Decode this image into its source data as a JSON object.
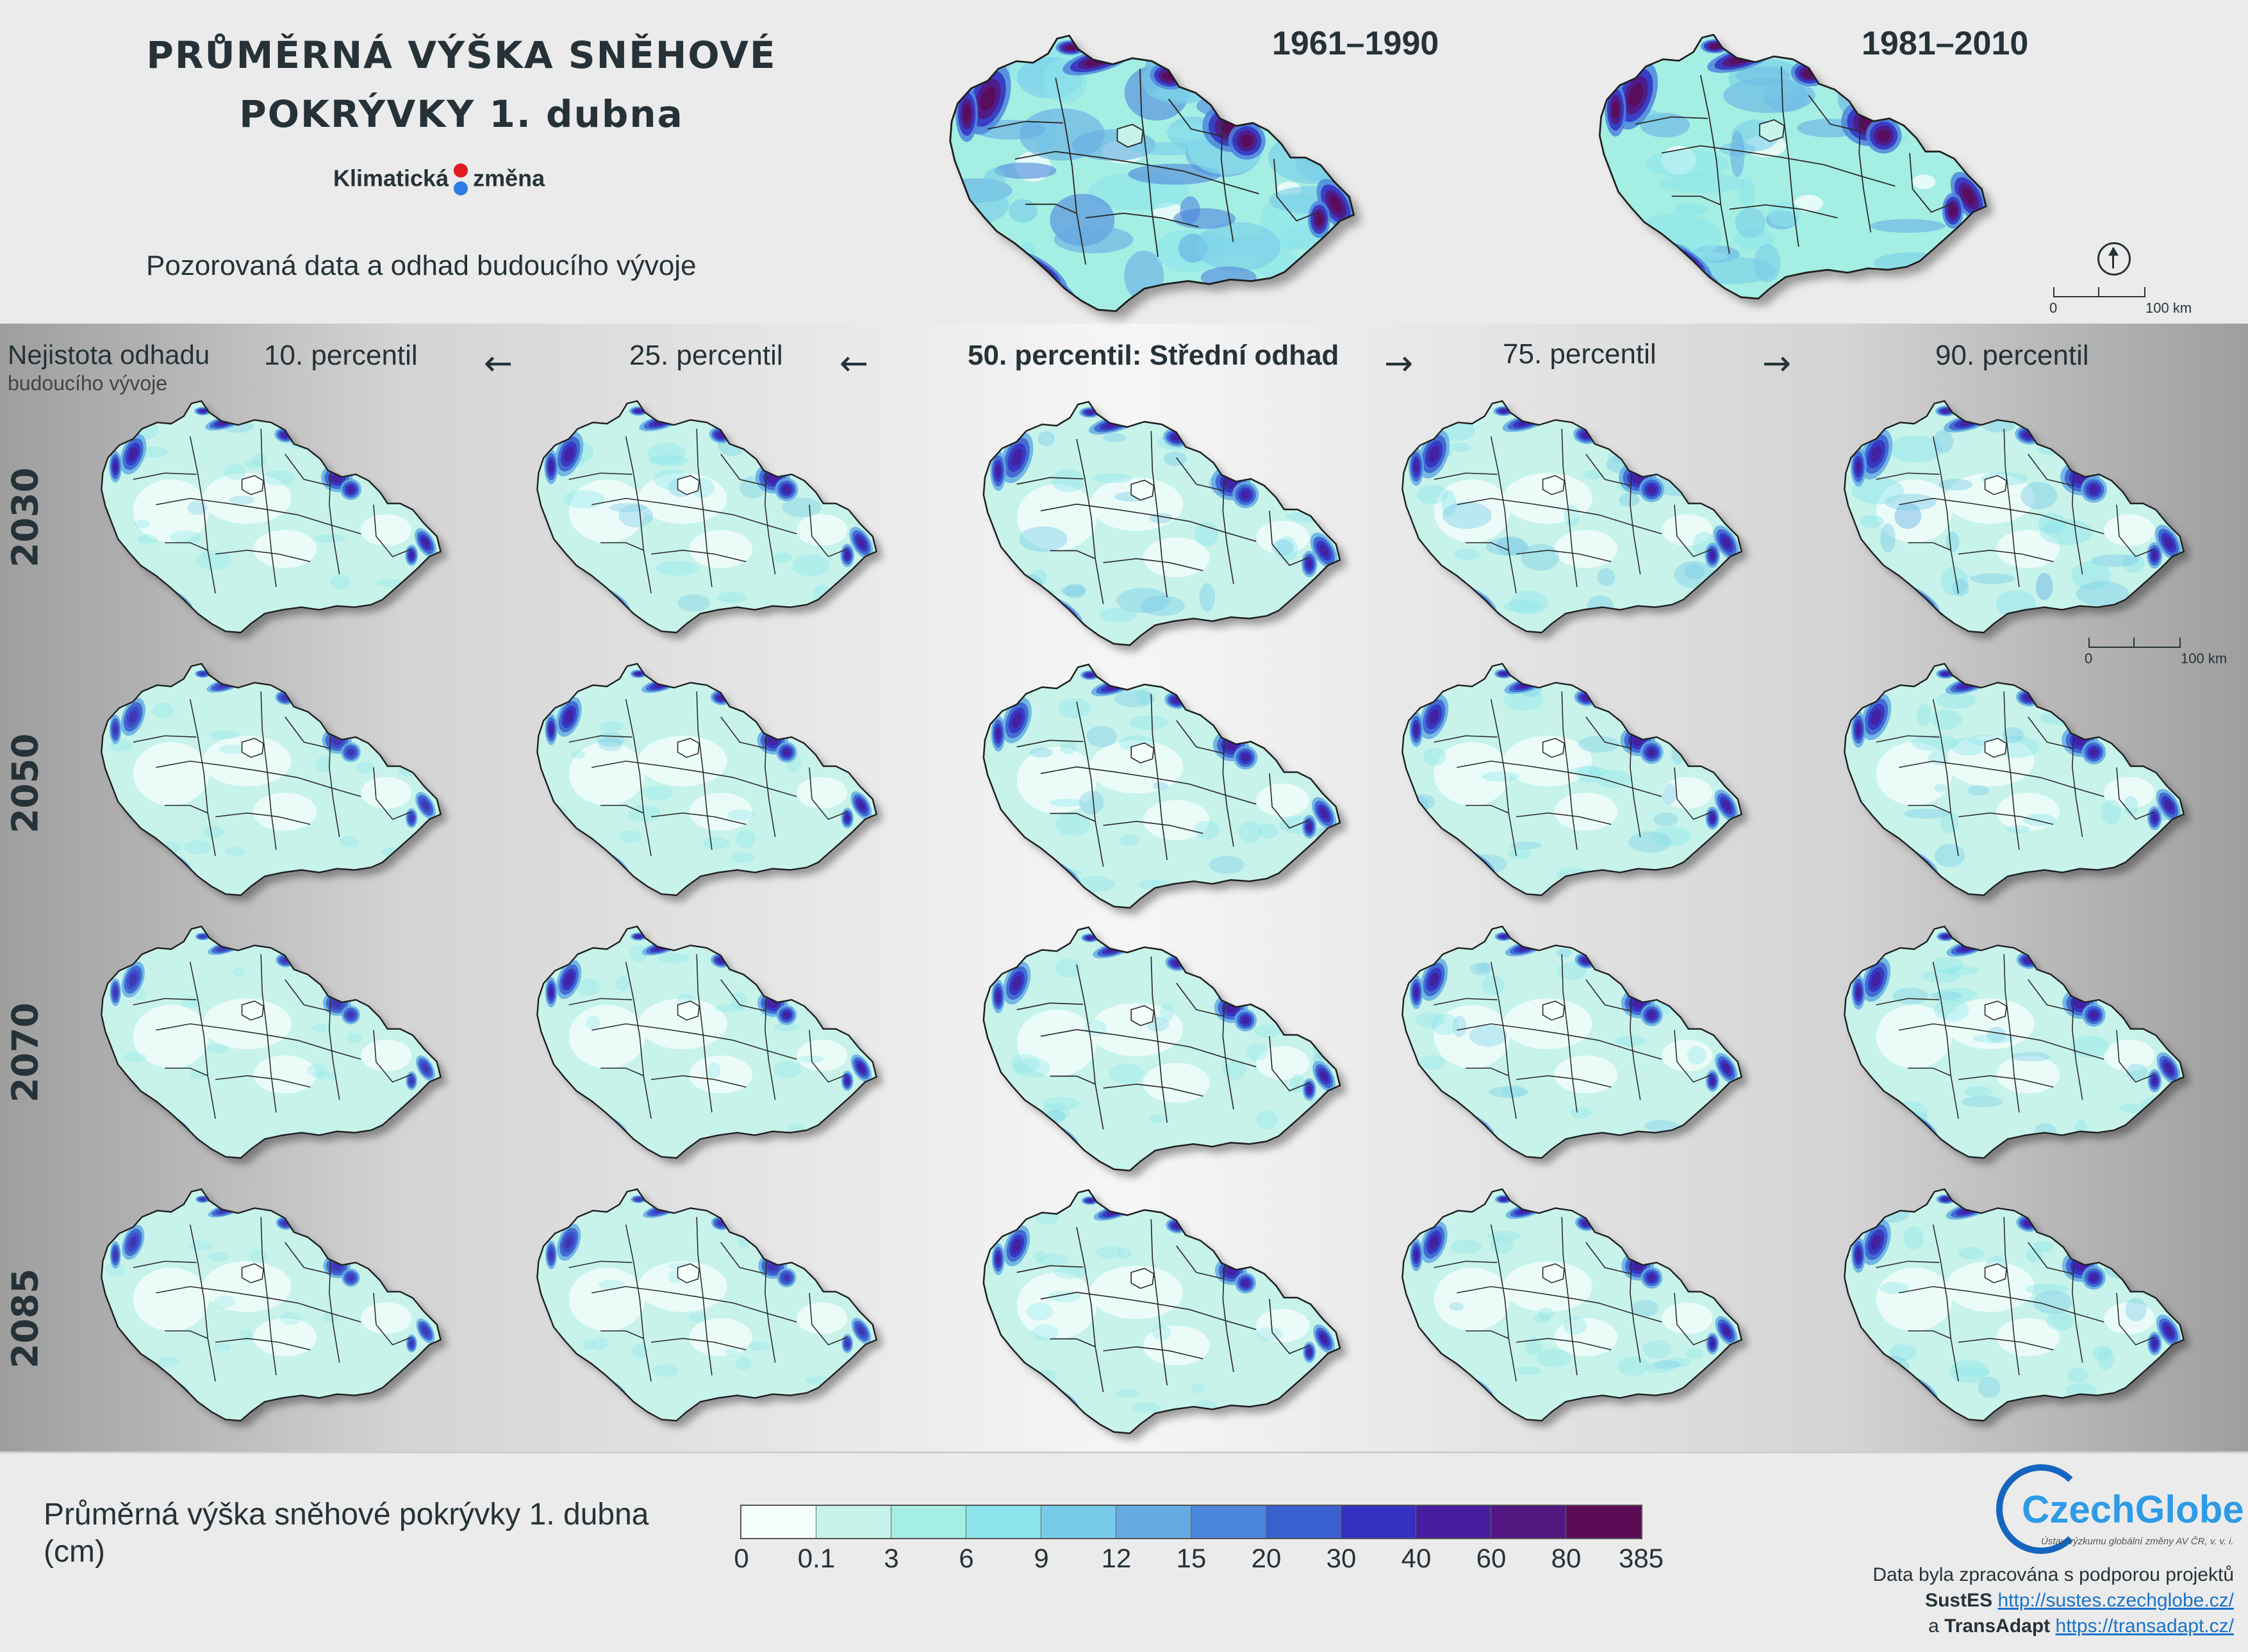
{
  "title": {
    "line1": "PRŮMĚRNÁ VÝŠKA SNĚHOVÉ",
    "line2": "POKRÝVKY 1. dubna"
  },
  "brand": {
    "word1": "Klimatická",
    "word2": "změna"
  },
  "subtitle": "Pozorovaná data a odhad budoucího vývoje",
  "observed_periods": [
    "1961–1990",
    "1981–2010"
  ],
  "uncertainty": {
    "line1": "Nejistota odhadu",
    "line2": "budoucího vývoje"
  },
  "percentiles": [
    "10. percentil",
    "25. percentil",
    "50. percentil: Střední odhad",
    "75. percentil",
    "90. percentil"
  ],
  "arrows": [
    "←",
    "←",
    "→",
    "→"
  ],
  "years": [
    "2030",
    "2050",
    "2070",
    "2085"
  ],
  "scale_bar": {
    "start": "0",
    "end": "100 km"
  },
  "legend": {
    "title": "Průměrná výška sněhové pokrývky 1. dubna (cm)",
    "breaks": [
      "0",
      "0.1",
      "3",
      "6",
      "9",
      "12",
      "15",
      "20",
      "30",
      "40",
      "60",
      "80",
      "385"
    ],
    "colors": [
      "#f4fefb",
      "#c7f3ea",
      "#a5eee4",
      "#8ce4ec",
      "#78cbe8",
      "#64abe4",
      "#4c86dc",
      "#3a5fcf",
      "#3430c0",
      "#451d9e",
      "#521780",
      "#5a0c55"
    ]
  },
  "logo": {
    "name": "CzechGlobe",
    "institute": "Ústav výzkumu globální změny AV ČR, v. v. i."
  },
  "credits": {
    "line1": "Data byla zpracována s podporou projektů",
    "project1": "SustES",
    "url1": "http://sustes.czechglobe.cz/",
    "conj": "a",
    "project2": "TransAdapt",
    "url2": "https://transadapt.cz/"
  }
}
